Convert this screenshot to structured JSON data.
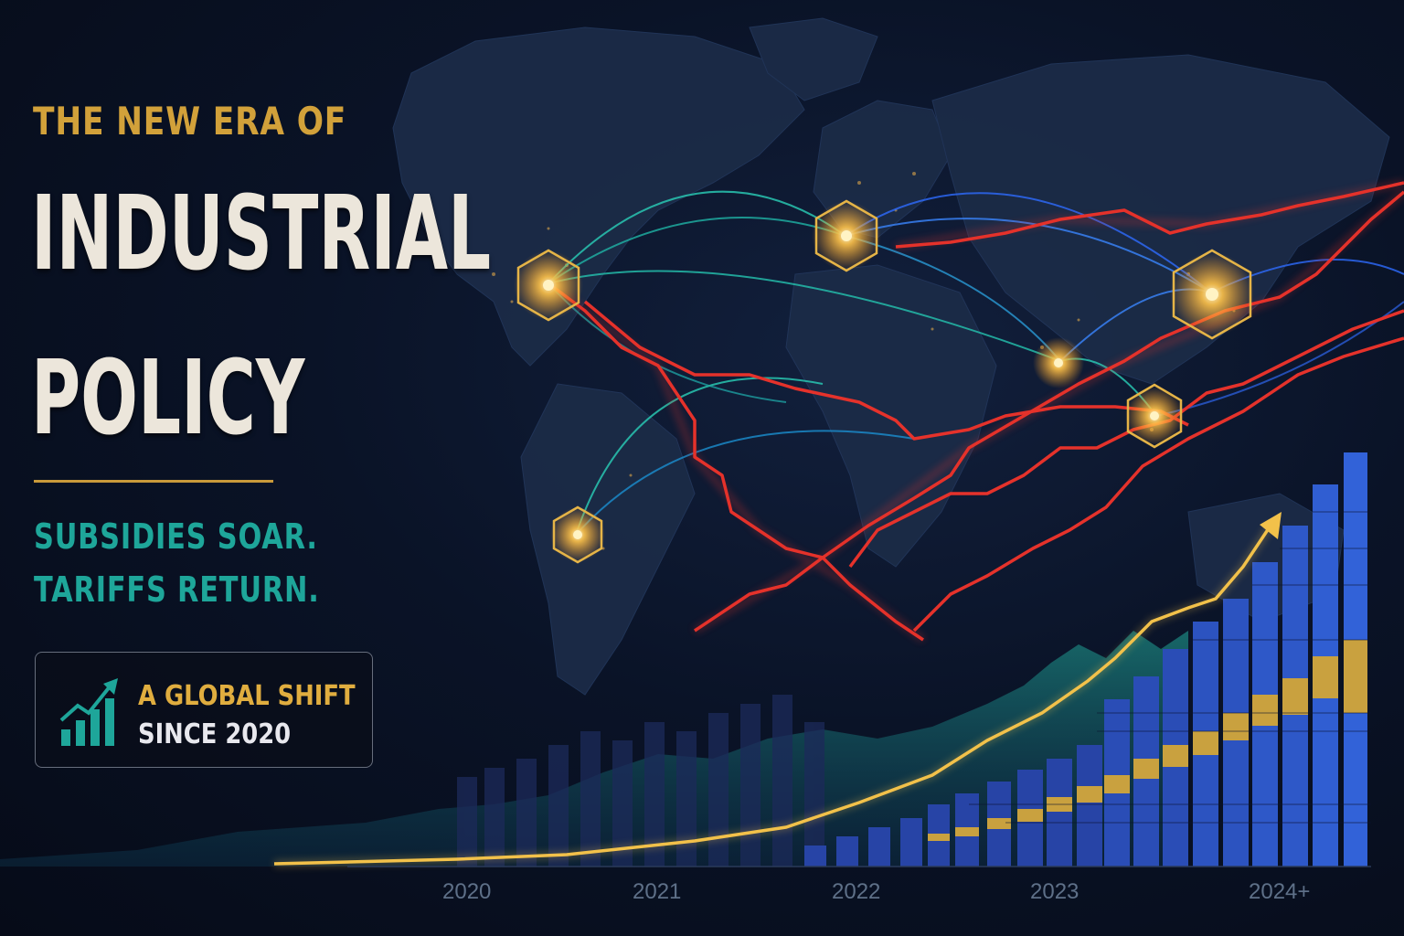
{
  "title": {
    "kicker": "THE NEW ERA OF",
    "line1": "INDUSTRIAL",
    "line2": "POLICY"
  },
  "subtitle": {
    "line1": "SUBSIDIES SOAR.",
    "line2": "TARIFFS RETURN."
  },
  "badge": {
    "icon": "rising-bar-chart-icon",
    "line1": "A GLOBAL SHIFT",
    "line2": "SINCE 2020"
  },
  "timeline": {
    "years": [
      "2020",
      "2021",
      "2022",
      "2023",
      "2024+"
    ]
  },
  "colors": {
    "background": "#070d1c",
    "gold": "#d2a13a",
    "teal": "#1ea69a",
    "tariff_red": "#e5322b",
    "bar_blue": "#2845a8",
    "trend_yellow": "#f2c14a"
  },
  "icons": {
    "hub_markers": "hexagon-glow-icon",
    "trade_routes": "trade-arc-lines",
    "tariff_lines": "red-tariff-lines",
    "trend": "rising-arrow-icon"
  }
}
